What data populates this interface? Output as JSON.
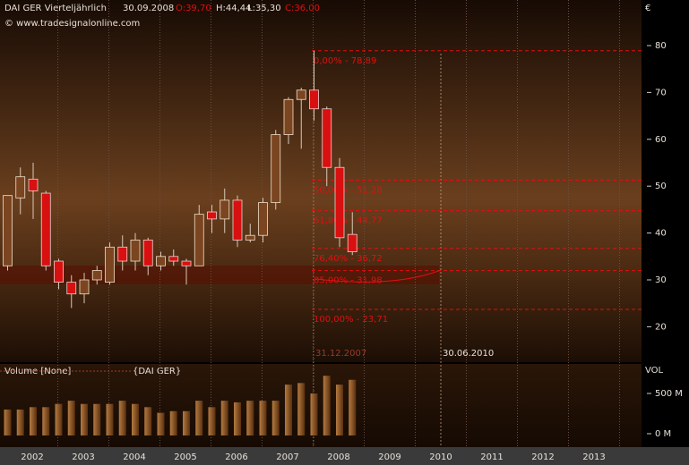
{
  "chart_data": [
    {
      "type": "candlestick",
      "title": "DAI GER Vierteljährlich",
      "header": {
        "date": "30.09.2008",
        "open_label": "O:39,70",
        "high_label": "H:44,44",
        "low_label": "L:35,30",
        "close_label": "C:36,00"
      },
      "source": "© www.tradesignalonline.com",
      "y_unit": "€",
      "open": [
        33,
        47.5,
        51.5,
        48.5,
        34,
        29.5,
        27,
        30,
        29.5,
        37,
        34,
        38.5,
        33,
        35,
        34,
        33,
        44.5,
        43,
        47,
        38.5,
        39.5,
        46.5,
        61,
        68.5,
        70.5,
        66.5,
        54,
        39.7
      ],
      "high": [
        48,
        54,
        55,
        49,
        34.5,
        31,
        31.5,
        33,
        38,
        39.5,
        40,
        39,
        36,
        36.5,
        34.5,
        46,
        46,
        49.5,
        48,
        42,
        47.5,
        62,
        69,
        71,
        78.89,
        67,
        56,
        44.44
      ],
      "low": [
        32,
        44,
        43,
        32,
        28,
        24,
        25,
        29,
        29,
        32,
        32,
        31,
        32,
        33,
        29,
        33,
        40,
        40,
        37,
        38,
        38,
        45,
        59,
        58,
        64,
        50,
        37,
        35.3
      ],
      "close": [
        48,
        52,
        49,
        33,
        29.5,
        27,
        30,
        32,
        37,
        34,
        38.5,
        33,
        35,
        34,
        33,
        44,
        43,
        47,
        38.5,
        39.5,
        46.5,
        61,
        68.5,
        70.5,
        66.5,
        54,
        39,
        36
      ],
      "up_color": "#7a4520",
      "down_color": "#d81010",
      "ylim": [
        12.44,
        89.73
      ],
      "yticks": [
        20,
        30,
        40,
        50,
        60,
        70,
        80
      ],
      "years": [
        "2002",
        "2003",
        "2004",
        "2005",
        "2006",
        "2007",
        "2008",
        "2009",
        "2010",
        "2011",
        "2012",
        "2013"
      ],
      "fib_levels": [
        {
          "value": 78.89,
          "label": "0,00% - 78,89"
        },
        {
          "value": 51.28,
          "label": "50,00% - 51,28"
        },
        {
          "value": 44.77,
          "label": "61,80% - 44,77"
        },
        {
          "value": 36.72,
          "label": "76,40% - 36,72"
        },
        {
          "value": 31.98,
          "label": "85,00% - 31,98"
        },
        {
          "value": 23.71,
          "label": "100,00% - 23,71"
        }
      ],
      "date_markers": [
        "31.12.2007",
        "30.06.2010"
      ]
    },
    {
      "type": "bar",
      "title": "Volume [None]",
      "subtitle": "{DAI GER}",
      "axis_label": "VOL",
      "values": [
        300,
        300,
        330,
        330,
        370,
        410,
        370,
        370,
        370,
        410,
        370,
        330,
        260,
        280,
        280,
        410,
        330,
        410,
        390,
        410,
        410,
        410,
        610,
        630,
        500,
        720,
        610,
        670
      ],
      "color": "#8a5028",
      "ylim": [
        -167,
        867
      ],
      "yticks": [
        {
          "value": 0,
          "label": "0 M"
        },
        {
          "value": 500,
          "label": "500 M"
        }
      ]
    }
  ]
}
